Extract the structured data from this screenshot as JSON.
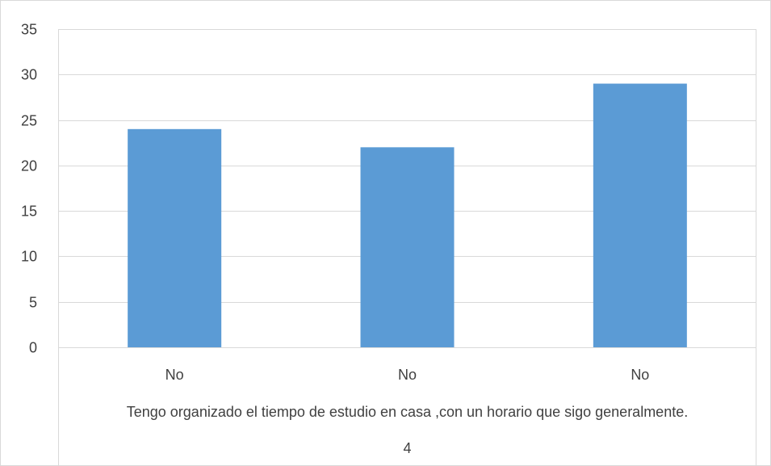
{
  "chart_data": {
    "type": "bar",
    "categories": [
      "No",
      "No",
      "No"
    ],
    "values": [
      24,
      22,
      29
    ],
    "group_labels": [
      "Tengo organizado el tiempo de estudio en casa ,con un horario que sigo generalmente.",
      "4"
    ],
    "ylim": [
      0,
      35
    ],
    "yticks": [
      0,
      5,
      10,
      15,
      20,
      25,
      30,
      35
    ],
    "grid": true,
    "bar_color": "#5b9bd5",
    "grid_color": "#d9d9d9",
    "text_color": "#404040"
  }
}
